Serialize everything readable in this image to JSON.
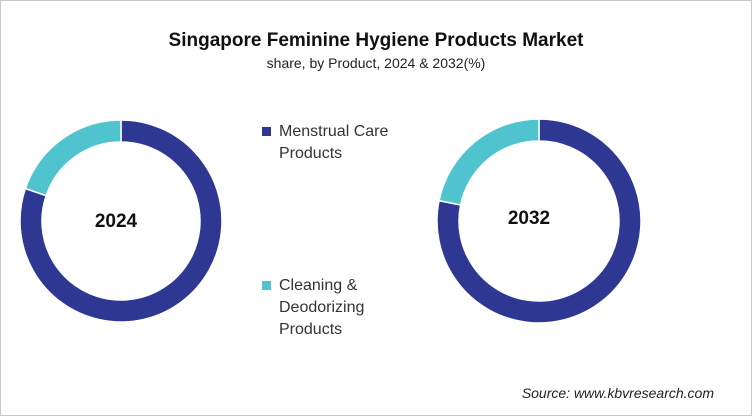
{
  "chart_data": {
    "type": "pie",
    "title": "Singapore Feminine Hygiene Products Market",
    "subtitle": "share, by Product, 2024 & 2032(%)",
    "categories": [
      "Menstrual Care Products",
      "Cleaning & Deodorizing Products"
    ],
    "colors": [
      "#2E3792",
      "#4FC4CF"
    ],
    "donut": true,
    "legend_position": "center",
    "charts": [
      {
        "label": "2024",
        "values": [
          80.2,
          19.8
        ]
      },
      {
        "label": "2032",
        "values": [
          78.2,
          21.8
        ]
      }
    ]
  },
  "legend": [
    "Menstrual Care Products",
    "Cleaning & Deodorizing Products"
  ],
  "source": "Source: www.kbvresearch.com"
}
